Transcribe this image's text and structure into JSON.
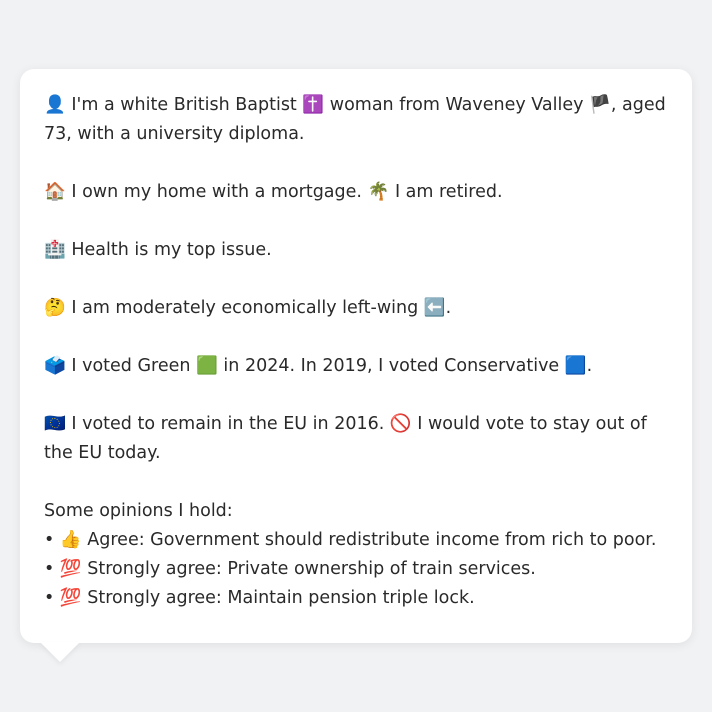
{
  "card": {
    "identity": {
      "icon": "👤",
      "text_a": "I'm a white British Baptist",
      "religion_icon": "✝️",
      "text_b": "woman from Waveney Valley",
      "flag_icon": "🏴",
      "text_c": ", aged 73, with a university diploma."
    },
    "home": {
      "home_icon": "🏠",
      "home_text": "I own my home with a mortgage.",
      "retired_icon": "🌴",
      "retired_text": "I am retired."
    },
    "issue": {
      "icon": "🏥",
      "text": "Health is my top issue."
    },
    "economics": {
      "icon": "🤔",
      "text": "I am moderately economically left-wing",
      "direction_icon": "⬅️",
      "suffix": "."
    },
    "votes": {
      "icon": "🗳️",
      "text_a": "I voted Green",
      "green_icon": "🟩",
      "text_b": "in 2024. In 2019, I voted Conservative",
      "blue_icon": "🟦",
      "suffix": "."
    },
    "eu": {
      "icon": "🇪🇺",
      "text_a": "I voted to remain in the EU in 2016.",
      "no_icon": "🚫",
      "text_b": "I would vote to stay out of the EU today."
    },
    "opinions": {
      "heading": "Some opinions I hold:",
      "items": [
        {
          "bullet": "•",
          "icon": "👍",
          "text": "Agree: Government should redistribute income from rich to poor."
        },
        {
          "bullet": "•",
          "icon": "💯",
          "text": "Strongly agree: Private ownership of train services."
        },
        {
          "bullet": "•",
          "icon": "💯",
          "text": "Strongly agree: Maintain pension triple lock."
        }
      ]
    }
  }
}
